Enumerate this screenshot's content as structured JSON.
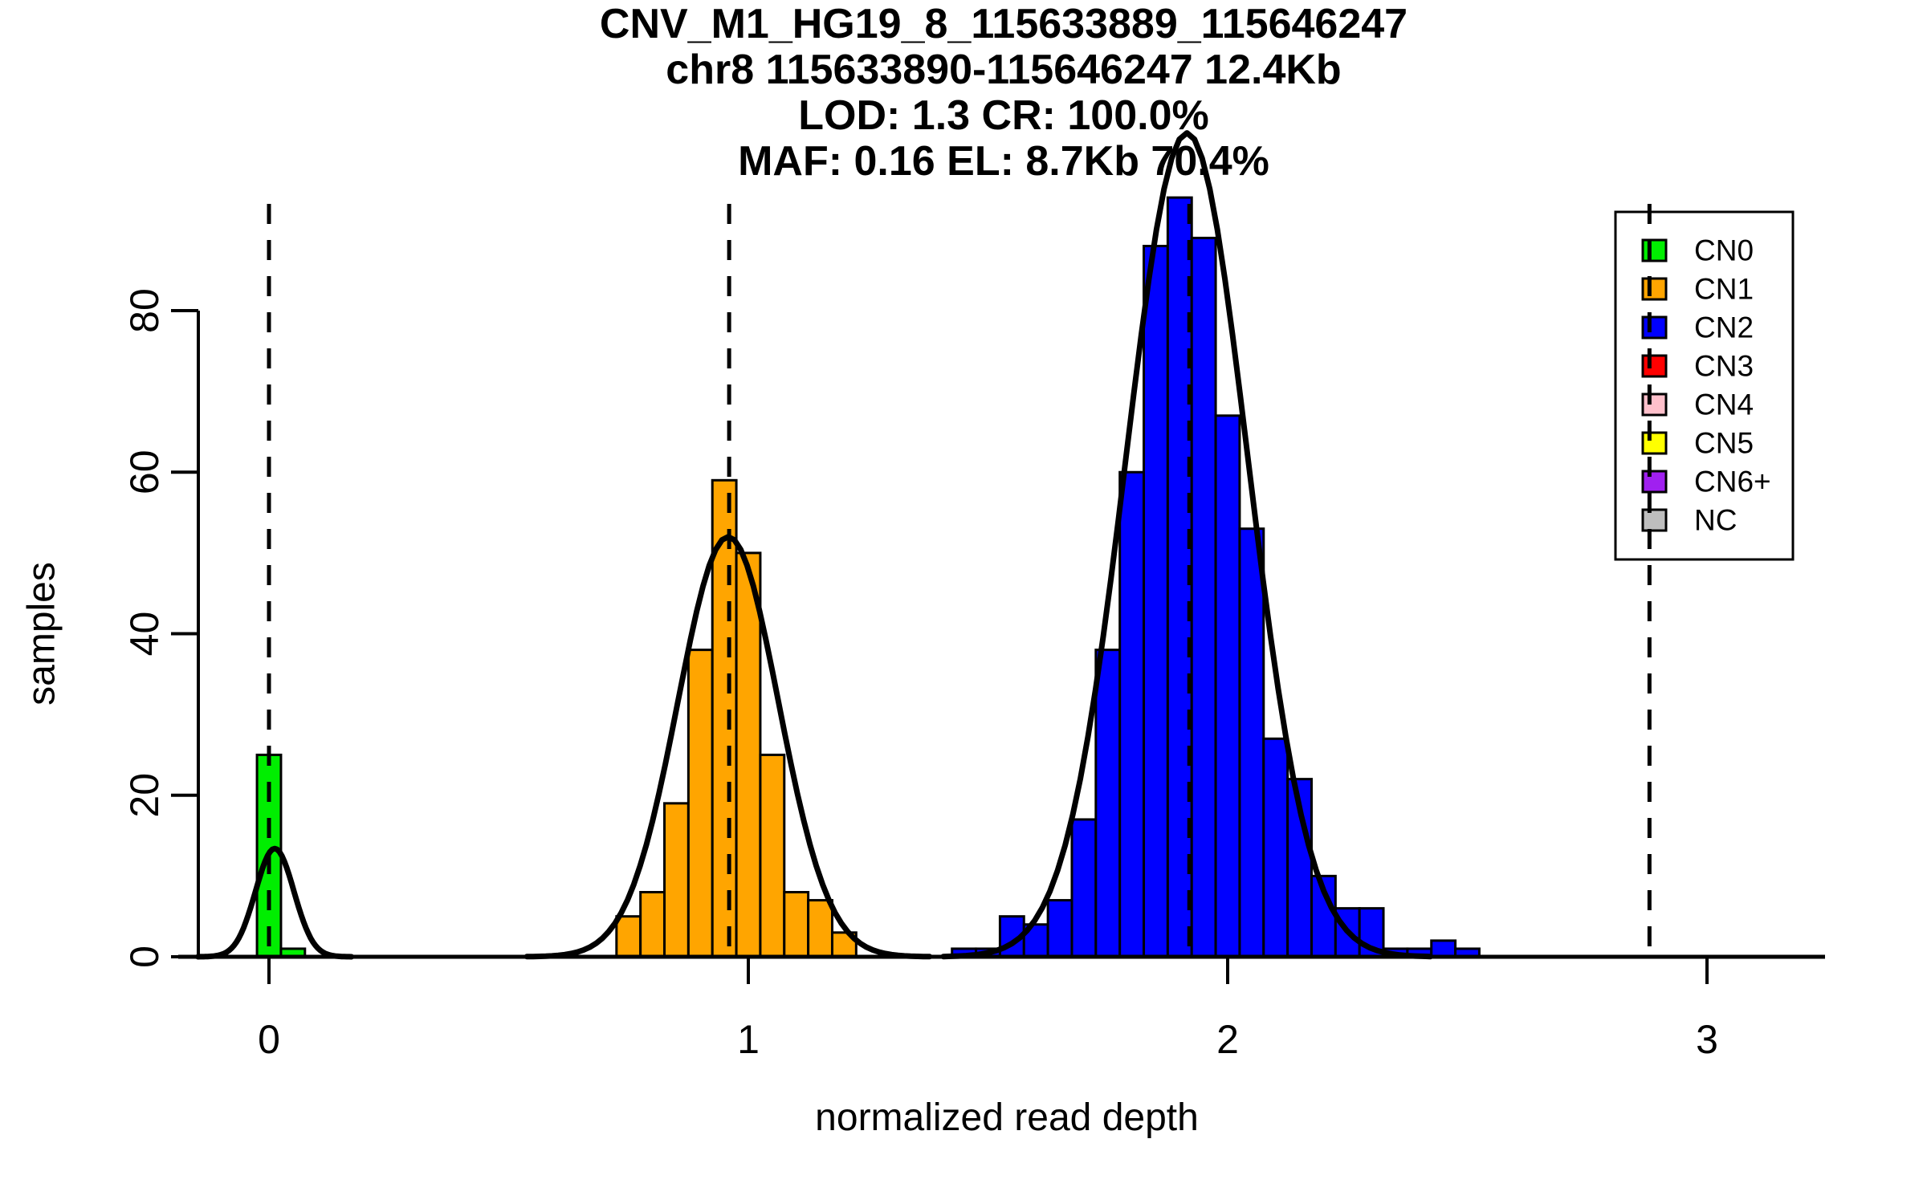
{
  "title_lines": [
    "CNV_M1_HG19_8_115633889_115646247",
    "chr8 115633890-115646247 12.4Kb",
    "LOD: 1.3 CR: 100.0%",
    "MAF: 0.16 EL: 8.7Kb 70.4%"
  ],
  "chart_data": {
    "type": "bar",
    "subtype": "histogram-with-gaussian-fits",
    "title": "CNV_M1_HG19_8_115633889_115646247 / chr8 115633890-115646247 12.4Kb / LOD: 1.3 CR: 100.0% / MAF: 0.16 EL: 8.7Kb 70.4%",
    "xlabel": "normalized read depth",
    "ylabel": "samples",
    "x_ticks": [
      0,
      1,
      2,
      3
    ],
    "y_ticks": [
      0,
      20,
      40,
      60,
      80
    ],
    "xlim": [
      -0.19,
      3.25
    ],
    "ylim": [
      0,
      80
    ],
    "grid": false,
    "bin_width": 0.05,
    "dashed_lines_x": [
      0.0,
      0.96,
      1.92,
      2.88
    ],
    "series": [
      {
        "name": "CN0",
        "color": "#00EE00",
        "bins_start": [
          -0.025,
          0.025
        ],
        "counts": [
          25,
          1
        ],
        "curve": {
          "center": 0.012,
          "sigma": 0.04,
          "amplitude": 13.4
        }
      },
      {
        "name": "CN1",
        "color": "#FFA500",
        "bins_start": [
          0.725,
          0.775,
          0.825,
          0.875,
          0.925,
          0.975,
          1.025,
          1.075,
          1.125,
          1.175
        ],
        "counts": [
          5,
          8,
          19,
          38,
          59,
          50,
          25,
          8,
          7,
          3
        ],
        "curve": {
          "center": 0.958,
          "sigma": 0.105,
          "amplitude": 52
        }
      },
      {
        "name": "CN2",
        "color": "#0000FF",
        "bins_start": [
          1.425,
          1.475,
          1.525,
          1.575,
          1.625,
          1.675,
          1.725,
          1.775,
          1.825,
          1.875,
          1.925,
          1.975,
          2.025,
          2.075,
          2.125,
          2.175,
          2.225,
          2.275,
          2.325,
          2.375,
          2.425,
          2.475
        ],
        "counts": [
          1,
          1,
          5,
          4,
          7,
          17,
          38,
          60,
          88,
          94,
          89,
          67,
          53,
          27,
          22,
          10,
          6,
          6,
          1,
          1,
          2,
          1
        ],
        "curve": {
          "center": 1.915,
          "sigma": 0.127,
          "amplitude": 102
        }
      }
    ],
    "legend": {
      "position": "top-right",
      "entries": [
        {
          "label": "CN0",
          "color": "#00EE00"
        },
        {
          "label": "CN1",
          "color": "#FFA500"
        },
        {
          "label": "CN2",
          "color": "#0000FF"
        },
        {
          "label": "CN3",
          "color": "#FF0000"
        },
        {
          "label": "CN4",
          "color": "#FFC0CB"
        },
        {
          "label": "CN5",
          "color": "#FFFF00"
        },
        {
          "label": "CN6+",
          "color": "#A020F0"
        },
        {
          "label": "NC",
          "color": "#BEBEBE"
        }
      ]
    },
    "colors": {
      "axis": "#000000",
      "curve": "#000000",
      "dashed_line": "#000000",
      "legend_background": "#ffffff"
    }
  }
}
